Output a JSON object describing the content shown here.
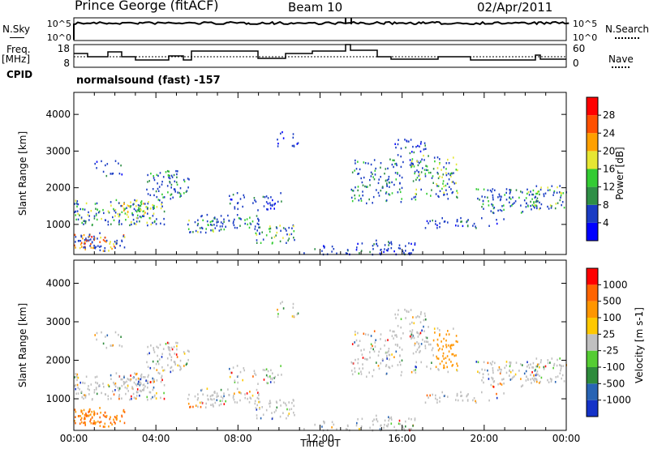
{
  "header": {
    "title": "Prince George (fitACF)",
    "beam": "Beam 10",
    "date": "02/Apr/2011"
  },
  "left_labels": {
    "nsky": "N.Sky",
    "freq": "Freq.",
    "freq_unit": "[MHz]",
    "cpid": "CPID"
  },
  "right_labels": {
    "nsearch": "N.Search",
    "nave": "Nave"
  },
  "noise_panel": {
    "tick_hi": "10^5",
    "tick_lo": "10^0",
    "rtick_hi": "10^5",
    "rtick_lo": "10^0"
  },
  "freq_panel": {
    "left_ticks": [
      "18",
      "8"
    ],
    "right_ticks": [
      "60",
      "0"
    ]
  },
  "cpid_text": "normalsound (fast) -157",
  "colors": {
    "scatter_blue": "#2b3ec4",
    "velocity_gray": "#bdbdbd",
    "accent_red": "#ff0000"
  },
  "chart_data": [
    {
      "type": "heatmap",
      "title": "Power",
      "xlabel": "Time UT",
      "ylabel": "Slant Range [km]",
      "x_ticks": [
        "00:00",
        "04:00",
        "08:00",
        "12:00",
        "16:00",
        "20:00",
        "00:00"
      ],
      "y_ticks": [
        "1000",
        "2000",
        "3000",
        "4000"
      ],
      "colorbar_label": "Power [dB]",
      "colorbar_ticks": [
        "4",
        "8",
        "12",
        "16",
        "20",
        "24",
        "28"
      ],
      "colorbar_colors": [
        "#0000ff",
        "#1a3cc4",
        "#2f8f46",
        "#33cc33",
        "#e6e633",
        "#ffa000",
        "#ff5000",
        "#ff0000"
      ]
    },
    {
      "type": "heatmap",
      "title": "Velocity",
      "xlabel": "Time UT",
      "ylabel": "Slant Range [km]",
      "x_ticks": [
        "00:00",
        "04:00",
        "08:00",
        "12:00",
        "16:00",
        "20:00",
        "00:00"
      ],
      "y_ticks": [
        "1000",
        "2000",
        "3000",
        "4000"
      ],
      "colorbar_label": "Velocity [m s-1]",
      "colorbar_ticks": [
        "1000",
        "500",
        "100",
        "25",
        "-25",
        "-100",
        "-500",
        "-1000"
      ],
      "colorbar_colors": [
        "#1432c8",
        "#2864b4",
        "#2e8b3c",
        "#55cc33",
        "#c0c0c0",
        "#ffc800",
        "#ff9600",
        "#ff6400",
        "#ff0000"
      ]
    }
  ]
}
